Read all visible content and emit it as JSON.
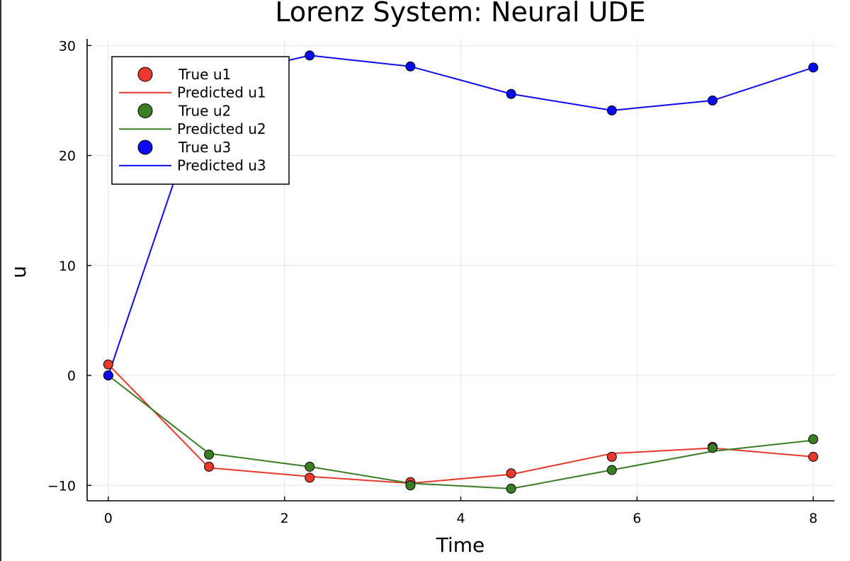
{
  "chart_data": {
    "type": "line",
    "title": "Lorenz System: Neural UDE",
    "xlabel": "Time",
    "ylabel": "u",
    "xlim": [
      -0.24,
      8.24
    ],
    "ylim": [
      -11.4,
      30.6
    ],
    "xticks": [
      0,
      2,
      4,
      6,
      8
    ],
    "xtick_labels": [
      "0",
      "2",
      "4",
      "6",
      "8"
    ],
    "yticks": [
      -10,
      0,
      10,
      20,
      30
    ],
    "ytick_labels": [
      "−10",
      "0",
      "10",
      "20",
      "30"
    ],
    "grid": true,
    "legend_position": "top-left",
    "x": [
      0,
      1.1429,
      2.2857,
      3.4286,
      4.5714,
      5.7143,
      6.8571,
      8.0
    ],
    "series": [
      {
        "true_name": "True u1",
        "pred_name": "Predicted u1",
        "color": "#e8392c",
        "true_values": [
          1.0,
          -8.3,
          -9.3,
          -9.7,
          -8.9,
          -7.4,
          -6.5,
          -7.4
        ],
        "pred_values": [
          1.0,
          -8.4,
          -9.2,
          -9.8,
          -9.0,
          -7.1,
          -6.6,
          -7.4
        ]
      },
      {
        "true_name": "True u2",
        "pred_name": "Predicted u2",
        "color": "#3b7d24",
        "true_values": [
          0.0,
          -7.2,
          -8.3,
          -10.0,
          -10.3,
          -8.6,
          -6.6,
          -5.8
        ],
        "pred_values": [
          0.0,
          -7.1,
          -8.3,
          -9.8,
          -10.3,
          -8.6,
          -6.9,
          -5.9
        ]
      },
      {
        "true_name": "True u3",
        "pred_name": "Predicted u3",
        "color": "#0a0af0",
        "true_values": [
          0.0,
          27.0,
          29.1,
          28.1,
          25.6,
          24.1,
          25.0,
          28.0
        ],
        "pred_values": [
          0.0,
          27.0,
          29.1,
          28.1,
          25.6,
          24.1,
          25.0,
          28.0
        ]
      }
    ]
  }
}
